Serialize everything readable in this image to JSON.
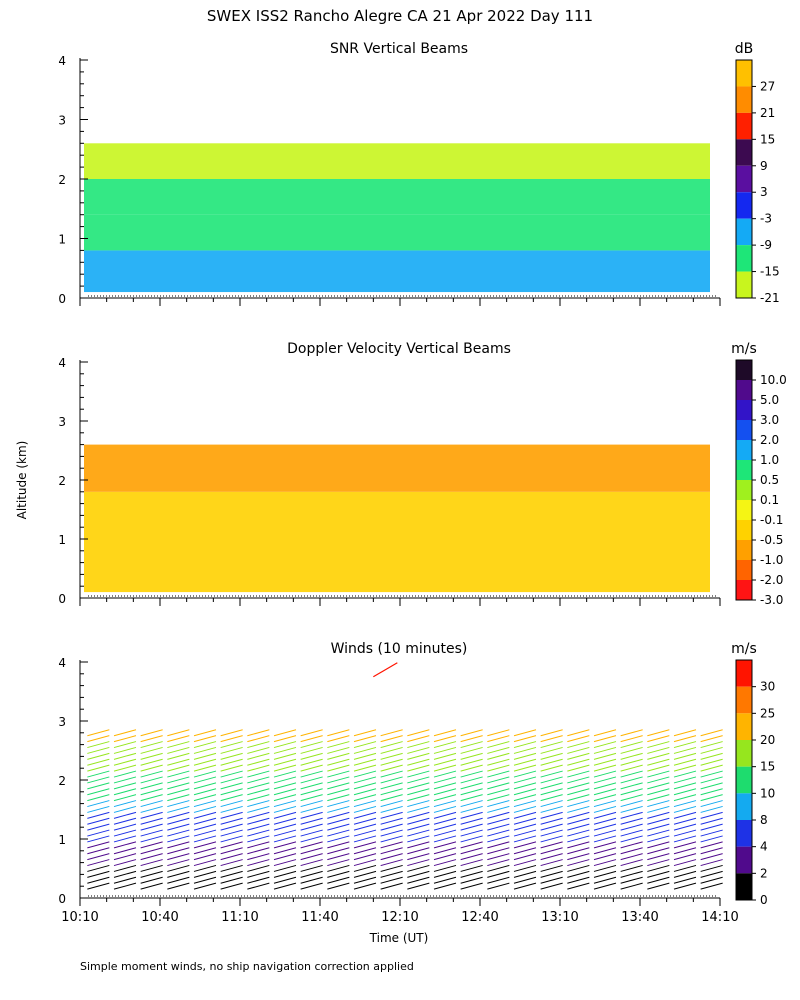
{
  "title": "SWEX ISS2 Rancho Alegre CA  21 Apr 2022 Day 111",
  "footnote": "Simple moment winds, no ship navigation correction applied",
  "shared_axes": {
    "xlabel": "Time (UT)",
    "ylabel": "Altitude (km)",
    "x_ticks": [
      "10:10",
      "10:40",
      "11:10",
      "11:40",
      "12:10",
      "12:40",
      "13:10",
      "13:40",
      "14:10"
    ],
    "x_range_min": [
      0,
      240
    ],
    "y_ticks": [
      "0",
      "1",
      "2",
      "3",
      "4"
    ],
    "y_range_km": [
      0,
      4
    ]
  },
  "chart_data": [
    {
      "type": "heatmap",
      "title": "SNR Vertical Beams",
      "colorbar_unit": "dB",
      "colorbar_labels": [
        "27",
        "21",
        "15",
        "9",
        "3",
        "-3",
        "-9",
        "-15",
        "-21"
      ],
      "colors": [
        "#ffc000",
        "#ff8c00",
        "#ff2000",
        "#3c0a50",
        "#5a0fa0",
        "#1428f0",
        "#14aaf5",
        "#1ee678",
        "#c8f51e"
      ],
      "data_top_km": 2.6,
      "layers": [
        {
          "bottom_km": 0.1,
          "top_km": 0.8,
          "dB": -5
        },
        {
          "bottom_km": 0.8,
          "top_km": 1.4,
          "dB": -10
        },
        {
          "bottom_km": 1.4,
          "top_km": 2.0,
          "dB": -15
        },
        {
          "bottom_km": 2.0,
          "top_km": 2.6,
          "dB": -18
        }
      ]
    },
    {
      "type": "heatmap",
      "title": "Doppler Velocity Vertical Beams",
      "colorbar_unit": "m/s",
      "colorbar_labels": [
        "10.0",
        "5.0",
        "3.0",
        "2.0",
        "1.0",
        "0.5",
        "0.1",
        "-0.1",
        "-0.5",
        "-1.0",
        "-2.0",
        "-3.0"
      ],
      "colors": [
        "#1e0a28",
        "#500a8c",
        "#3214c8",
        "#1450f0",
        "#14aaf5",
        "#1ee678",
        "#a0f01e",
        "#f5f514",
        "#ffd200",
        "#ffa000",
        "#ff6400",
        "#ff1414"
      ],
      "data_top_km": 2.6,
      "layers": [
        {
          "bottom_km": 0.1,
          "top_km": 1.0,
          "m_s": -0.2
        },
        {
          "bottom_km": 1.0,
          "top_km": 1.8,
          "m_s": -0.4
        },
        {
          "bottom_km": 1.8,
          "top_km": 2.6,
          "m_s": -0.6
        }
      ]
    },
    {
      "type": "wind-barbs",
      "title": "Winds (10 minutes)",
      "colorbar_unit": "m/s",
      "colorbar_labels": [
        "30",
        "25",
        "20",
        "15",
        "10",
        "8",
        "4",
        "2",
        "0"
      ],
      "colors": [
        "#ff1400",
        "#ff7800",
        "#ffb400",
        "#96e61e",
        "#1edc6e",
        "#14aaf0",
        "#1e32e6",
        "#500a8c",
        "#000000"
      ],
      "profile_times_min": [
        5,
        15,
        25,
        35,
        45,
        55,
        65,
        75,
        85,
        95,
        105,
        115,
        125,
        135,
        145,
        155,
        165,
        175,
        185,
        195,
        205,
        215,
        225,
        235
      ],
      "speed_profile": [
        {
          "alt_km": 0.25,
          "speed_m_s": 1
        },
        {
          "alt_km": 0.75,
          "speed_m_s": 3
        },
        {
          "alt_km": 1.25,
          "speed_m_s": 6
        },
        {
          "alt_km": 1.75,
          "speed_m_s": 11
        },
        {
          "alt_km": 2.25,
          "speed_m_s": 17
        },
        {
          "alt_km": 2.75,
          "speed_m_s": 21
        }
      ],
      "outlier": {
        "time_min": 110,
        "alt_km": 3.75,
        "speed_m_s": 30
      }
    }
  ]
}
